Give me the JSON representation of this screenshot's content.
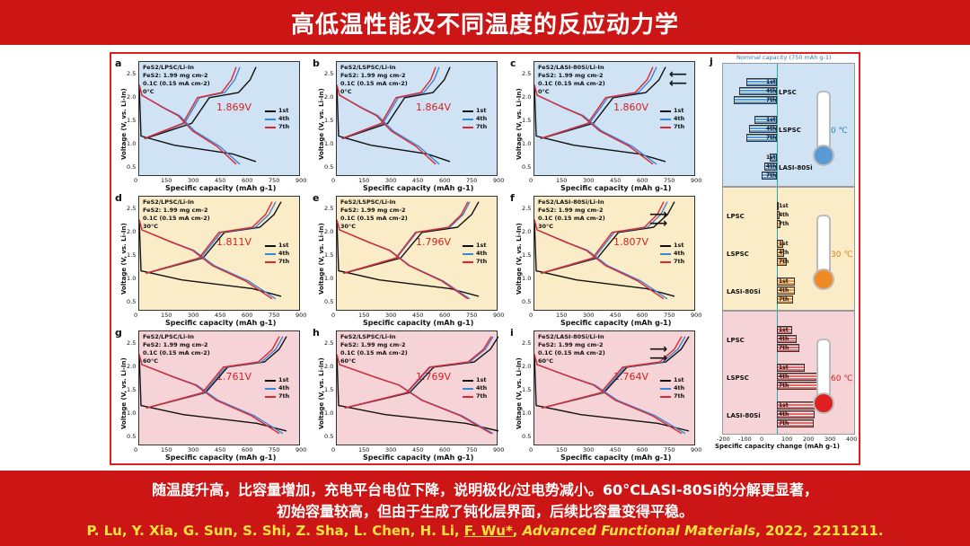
{
  "header": {
    "title": "高低温性能及不同温度的反应动力学"
  },
  "figure": {
    "panels": [
      {
        "id": "a",
        "cell": "FeS2/LPSC/Li-In",
        "loading": "FeS2: 1.99 mg cm-2",
        "rate": "0.1C (0.15 mA cm-2)",
        "temp": "0°C",
        "voltage": "1.869V",
        "bg": "blue"
      },
      {
        "id": "b",
        "cell": "FeS2/LSPSC/Li-In",
        "loading": "FeS2: 1.99 mg cm-2",
        "rate": "0.1C (0.15 mA cm-2)",
        "temp": "0°C",
        "voltage": "1.864V",
        "bg": "blue"
      },
      {
        "id": "c",
        "cell": "FeS2/LASI-80Si/Li-In",
        "loading": "FeS2: 1.99 mg cm-2",
        "rate": "0.1C (0.15 mA cm-2)",
        "temp": "0°C",
        "voltage": "1.860V",
        "bg": "blue"
      },
      {
        "id": "d",
        "cell": "FeS2/LPSC/Li-In",
        "loading": "FeS2: 1.99 mg cm-2",
        "rate": "0.1C (0.15 mA cm-2)",
        "temp": "30°C",
        "voltage": "1.811V",
        "bg": "yellow"
      },
      {
        "id": "e",
        "cell": "FeS2/LSPSC/Li-In",
        "loading": "FeS2: 1.99 mg cm-2",
        "rate": "0.1C (0.15 mA cm-2)",
        "temp": "30°C",
        "voltage": "1.796V",
        "bg": "yellow"
      },
      {
        "id": "f",
        "cell": "FeS2/LASI-80Si/Li-In",
        "loading": "FeS2: 1.99 mg cm-2",
        "rate": "0.1C (0.15 mA cm-2)",
        "temp": "30°C",
        "voltage": "1.807V",
        "bg": "yellow"
      },
      {
        "id": "g",
        "cell": "FeS2/LPSC/Li-In",
        "loading": "FeS2: 1.99 mg cm-2",
        "rate": "0.1C (0.15 mA cm-2)",
        "temp": "60°C",
        "voltage": "1.761V",
        "bg": "pink"
      },
      {
        "id": "h",
        "cell": "FeS2/LSPSC/Li-In",
        "loading": "FeS2: 1.99 mg cm-2",
        "rate": "0.1C (0.15 mA cm-2)",
        "temp": "60°C",
        "voltage": "1.769V",
        "bg": "pink"
      },
      {
        "id": "i",
        "cell": "FeS2/LASI-80Si/Li-In",
        "loading": "FeS2: 1.99 mg cm-2",
        "rate": "0.1C (0.15 mA cm-2)",
        "temp": "60°C",
        "voltage": "1.764V",
        "bg": "pink"
      }
    ],
    "legend": [
      "1st",
      "4th",
      "7th"
    ],
    "legend_colors": [
      "#111111",
      "#3a86d8",
      "#e0262c"
    ],
    "x_axis_label": "Specific capacity (mAh g-1)",
    "y_axis_label": "Voltage (V, vs. Li-In)",
    "y_ticks": [
      "2.5",
      "2.0",
      "1.5",
      "1.0",
      "0.5"
    ],
    "x_ticks_row1": [
      "0",
      "150",
      "300",
      "450",
      "600",
      "750",
      "900"
    ],
    "x_ticks_row3": [
      "0",
      "150",
      "300",
      "450",
      "600",
      "750",
      "900"
    ],
    "panel_j": {
      "label": "j",
      "nominal": "Nominal capacity (750 mAh g-1)",
      "x_axis_label": "Specific capacity change (mAh g-1)",
      "x_ticks": [
        "-200",
        "-100",
        "0",
        "100",
        "200",
        "300",
        "400"
      ],
      "groups": [
        {
          "temp": "0 ℃",
          "color": "#cfe3f5",
          "bar": "#5b9bd5",
          "rows": [
            {
              "name": "LPSC",
              "cycles": [
                {
                  "c": "1st",
                  "v": -120
                },
                {
                  "c": "4th",
                  "v": -150
                },
                {
                  "c": "7th",
                  "v": -170
                }
              ]
            },
            {
              "name": "LSPSC",
              "cycles": [
                {
                  "c": "1st",
                  "v": -90
                },
                {
                  "c": "4th",
                  "v": -110
                },
                {
                  "c": "7th",
                  "v": -120
                }
              ]
            },
            {
              "name": "LASI-80Si",
              "cycles": [
                {
                  "c": "1st",
                  "v": -30
                },
                {
                  "c": "4th",
                  "v": -50
                },
                {
                  "c": "7th",
                  "v": -60
                }
              ]
            }
          ]
        },
        {
          "temp": "30 ℃",
          "color": "#fbecc8",
          "bar": "#ed9b45",
          "rows": [
            {
              "name": "LPSC",
              "cycles": [
                {
                  "c": "1st",
                  "v": 5
                },
                {
                  "c": "4th",
                  "v": 10
                },
                {
                  "c": "7th",
                  "v": 15
                }
              ]
            },
            {
              "name": "LSPSC",
              "cycles": [
                {
                  "c": "1st",
                  "v": 25
                },
                {
                  "c": "4th",
                  "v": 30
                },
                {
                  "c": "7th",
                  "v": 40
                }
              ]
            },
            {
              "name": "LASI-80Si",
              "cycles": [
                {
                  "c": "1st",
                  "v": 70
                },
                {
                  "c": "4th",
                  "v": 70
                },
                {
                  "c": "7th",
                  "v": 65
                }
              ]
            }
          ]
        },
        {
          "temp": "60 ℃",
          "color": "#f6d3d6",
          "bar": "#e06a6a",
          "rows": [
            {
              "name": "LPSC",
              "cycles": [
                {
                  "c": "1st",
                  "v": 60
                },
                {
                  "c": "4th",
                  "v": 80
                },
                {
                  "c": "7th",
                  "v": 90
                }
              ]
            },
            {
              "name": "LSPSC",
              "cycles": [
                {
                  "c": "1st",
                  "v": 110
                },
                {
                  "c": "4th",
                  "v": 170
                },
                {
                  "c": "7th",
                  "v": 200
                }
              ]
            },
            {
              "name": "LASI-80Si",
              "cycles": [
                {
                  "c": "1st",
                  "v": 150
                },
                {
                  "c": "4th",
                  "v": 150
                },
                {
                  "c": "7th",
                  "v": 145
                }
              ]
            }
          ]
        }
      ]
    }
  },
  "footer": {
    "line1": "随温度升高，比容量增加，充电平台电位下降，说明极化/过电势减小。60°CLASI-80Si的分解更显著，",
    "line2": "初始容量较高，但由于生成了钝化层界面，后续比容量变得平稳。",
    "authors": "P. Lu,  Y. Xia, G. Sun, S. Shi, Z. Sha, L. Chen, H. Li,",
    "corresponding": "F. Wu*",
    "journal": "Advanced Functional Materials",
    "citation_tail": ", 2022, 2211211."
  }
}
